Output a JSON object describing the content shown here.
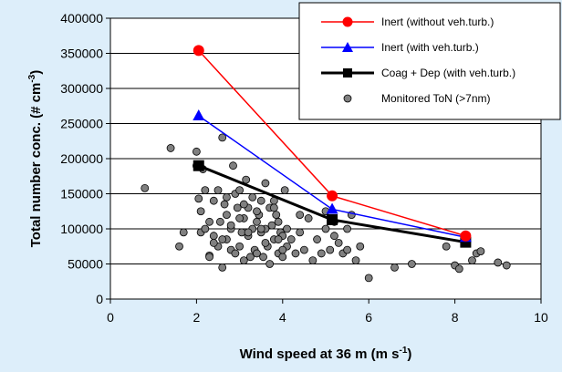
{
  "chart_data": {
    "type": "scatter",
    "title": "",
    "xlabel": {
      "main": "Wind speed at 36 m (m s",
      "sup": "-1",
      "tail": ")"
    },
    "ylabel": {
      "main": "Total number conc. (# cm",
      "sup": "-3",
      "tail": ")"
    },
    "xlim": [
      0,
      10
    ],
    "ylim": [
      0,
      400000
    ],
    "xticks": [
      0,
      2,
      4,
      6,
      8,
      10
    ],
    "yticks": [
      0,
      50000,
      100000,
      150000,
      200000,
      250000,
      300000,
      350000,
      400000
    ],
    "xtick_labels": [
      "0",
      "2",
      "4",
      "6",
      "8",
      "10"
    ],
    "ytick_labels": [
      "0",
      "50000",
      "100000",
      "150000",
      "200000",
      "250000",
      "300000",
      "350000",
      "400000"
    ],
    "grid": {
      "y": true,
      "x": false
    },
    "legend_position": "top-right",
    "colors": {
      "background": "#ddeefa",
      "plot_area": "#ffffff",
      "inert_without": "#ff0000",
      "inert_with": "#0000ff",
      "coag_dep": "#000000",
      "monitored": "#808080"
    },
    "series": [
      {
        "name": "Inert (without veh.turb.)",
        "style": "line-circle",
        "color": "#ff0000",
        "x": [
          2.05,
          5.15,
          8.25
        ],
        "y": [
          354000,
          147000,
          90000
        ]
      },
      {
        "name": "Inert (with veh.turb.)",
        "style": "line-triangle",
        "color": "#0000ff",
        "x": [
          2.05,
          5.15,
          8.25
        ],
        "y": [
          261000,
          128000,
          88000
        ]
      },
      {
        "name": "Coag + Dep (with veh.turb.)",
        "style": "line-square",
        "color": "#000000",
        "x": [
          2.05,
          5.15,
          8.25
        ],
        "y": [
          190000,
          113000,
          81000
        ]
      },
      {
        "name": "Monitored ToN (>7nm)",
        "style": "scatter",
        "color": "#808080",
        "x": [
          0.8,
          1.4,
          1.6,
          1.7,
          2.0,
          2.0,
          2.05,
          2.1,
          2.1,
          2.15,
          2.2,
          2.2,
          2.3,
          2.3,
          2.4,
          2.4,
          2.5,
          2.5,
          2.55,
          2.6,
          2.6,
          2.65,
          2.7,
          2.7,
          2.8,
          2.8,
          2.85,
          2.9,
          2.9,
          2.95,
          3.0,
          3.0,
          3.05,
          3.1,
          3.1,
          3.15,
          3.2,
          3.2,
          3.25,
          3.3,
          3.3,
          3.35,
          3.4,
          3.4,
          3.45,
          3.5,
          3.5,
          3.55,
          3.6,
          3.6,
          3.65,
          3.7,
          3.7,
          3.75,
          3.8,
          3.8,
          3.85,
          3.9,
          3.9,
          3.95,
          4.0,
          4.0,
          4.05,
          4.1,
          4.1,
          4.2,
          4.3,
          4.4,
          4.4,
          4.5,
          4.6,
          4.7,
          4.8,
          4.9,
          5.0,
          5.0,
          5.1,
          5.2,
          5.2,
          5.3,
          5.4,
          5.5,
          5.5,
          5.6,
          5.7,
          5.8,
          6.0,
          6.6,
          7.0,
          7.8,
          8.0,
          8.1,
          8.4,
          8.5,
          8.6,
          9.0,
          9.2,
          2.4,
          2.6,
          2.8,
          3.0,
          3.2,
          3.4,
          3.6,
          3.8,
          4.0,
          2.3,
          2.7,
          3.1,
          3.5,
          3.9
        ],
        "y": [
          158000,
          215000,
          75000,
          95000,
          210000,
          190000,
          143000,
          125000,
          95000,
          185000,
          155000,
          100000,
          110000,
          62000,
          140000,
          90000,
          155000,
          75000,
          110000,
          45000,
          230000,
          135000,
          85000,
          120000,
          100000,
          70000,
          190000,
          150000,
          65000,
          130000,
          75000,
          155000,
          95000,
          115000,
          55000,
          170000,
          90000,
          130000,
          60000,
          100000,
          145000,
          70000,
          110000,
          65000,
          120000,
          140000,
          95000,
          60000,
          165000,
          100000,
          75000,
          130000,
          50000,
          105000,
          85000,
          140000,
          120000,
          65000,
          110000,
          95000,
          90000,
          60000,
          155000,
          75000,
          100000,
          85000,
          65000,
          120000,
          95000,
          70000,
          115000,
          55000,
          85000,
          65000,
          100000,
          125000,
          70000,
          110000,
          90000,
          80000,
          65000,
          70000,
          100000,
          120000,
          55000,
          75000,
          30000,
          45000,
          50000,
          75000,
          48000,
          43000,
          55000,
          65000,
          68000,
          52000,
          48000,
          80000,
          85000,
          105000,
          115000,
          95000,
          125000,
          80000,
          130000,
          70000,
          60000,
          145000,
          135000,
          100000,
          85000
        ]
      }
    ]
  }
}
